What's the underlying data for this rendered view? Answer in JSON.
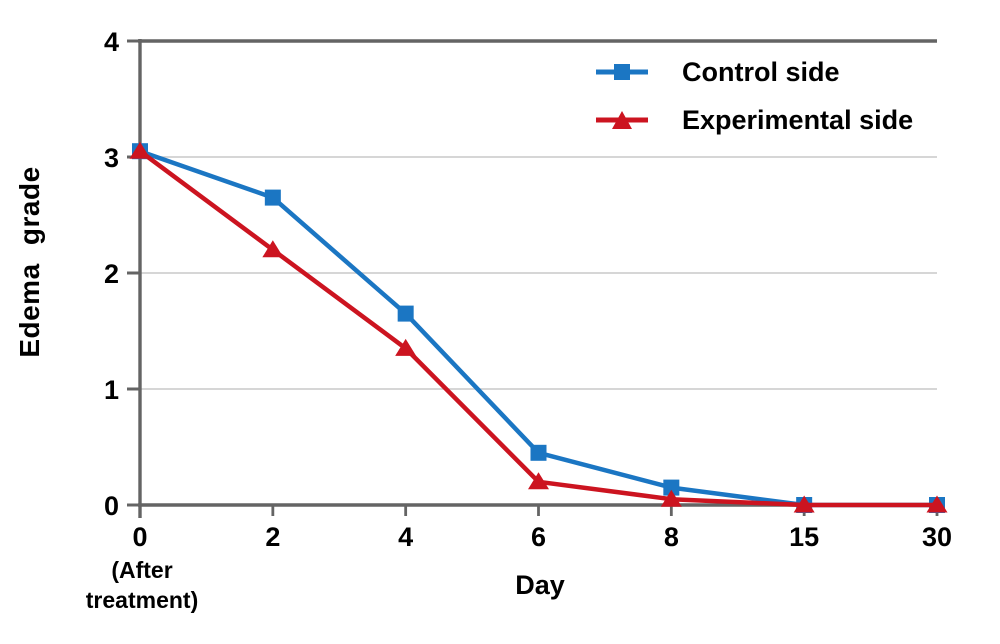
{
  "chart_data": {
    "type": "line",
    "title": "",
    "xlabel": "Day",
    "x_note": "(After\ntreatment)",
    "ylabel": "Edema grade",
    "categories": [
      "0",
      "2",
      "4",
      "6",
      "8",
      "15",
      "30"
    ],
    "ylim": [
      0,
      4
    ],
    "yticks": [
      0,
      1,
      2,
      3,
      4
    ],
    "grid": "horizontal-light-gray",
    "legend_position": "top-right-inside",
    "series": [
      {
        "name": "Control side",
        "marker": "square",
        "color": "#1B76C3",
        "values": [
          3.05,
          2.65,
          1.65,
          0.45,
          0.15,
          0,
          0
        ]
      },
      {
        "name": "Experimental side",
        "marker": "triangle-up",
        "color": "#CC1420",
        "values": [
          3.05,
          2.2,
          1.35,
          0.2,
          0.05,
          0,
          0
        ]
      }
    ]
  },
  "colors": {
    "axis": "#646464",
    "gridline": "#C8C8C8",
    "text": "#000000",
    "background": "#FFFFFF"
  }
}
